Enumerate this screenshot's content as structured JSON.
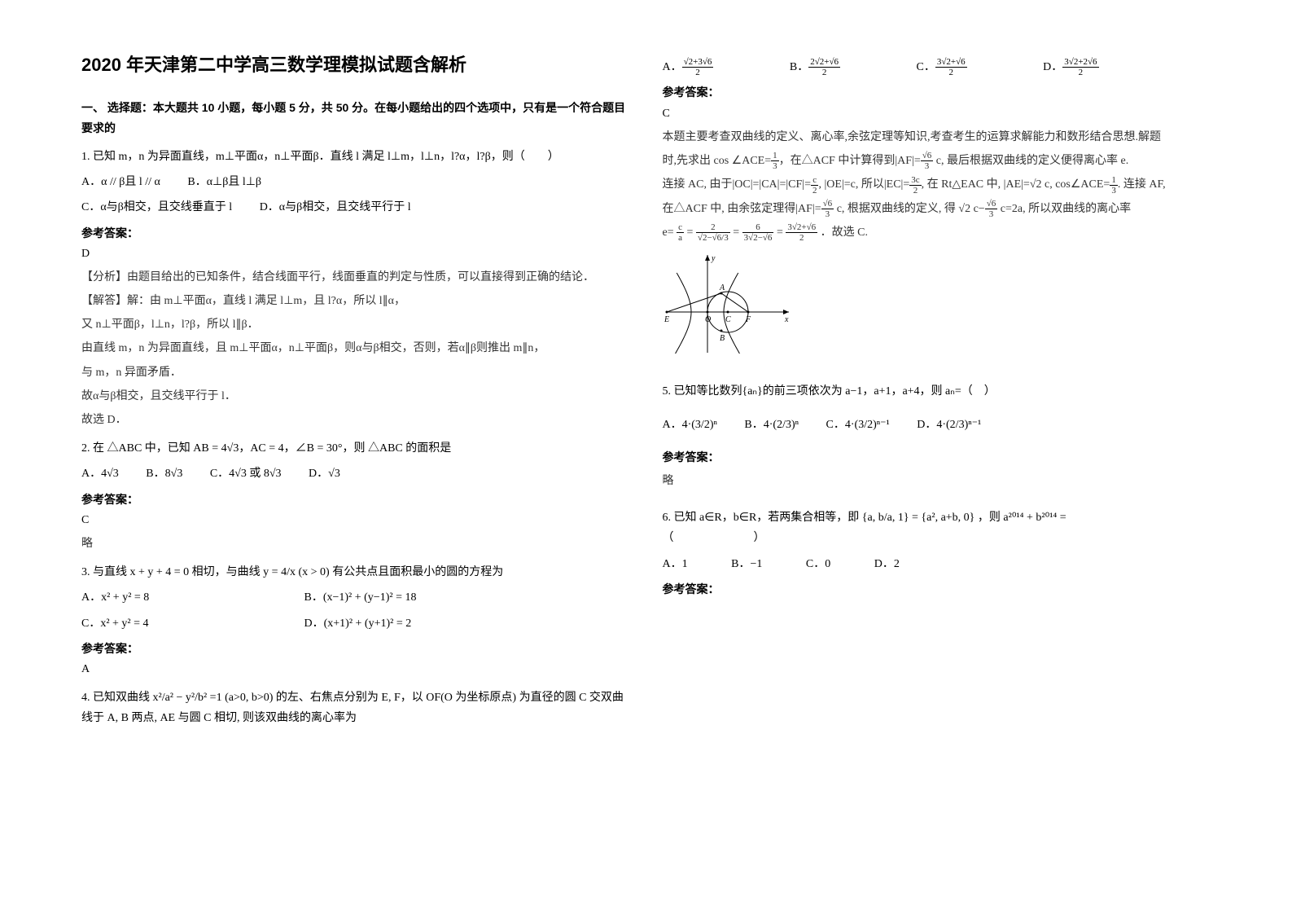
{
  "title": "2020 年天津第二中学高三数学理模拟试题含解析",
  "section1": "一、 选择题：本大题共 10 小题，每小题 5 分，共 50 分。在每小题给出的四个选项中，只有是一个符合题目要求的",
  "answer_label": "参考答案：",
  "q1": {
    "stem": "1. 已知 m，n 为异面直线，m⊥平面α，n⊥平面β．直线 l 满足 l⊥m，l⊥n，l?α，l?β，则（　　）",
    "optA": "A．α // β且 l // α",
    "optB": "B．α⊥β且 l⊥β",
    "optC": "C．α与β相交，且交线垂直于 l",
    "optD": "D．α与β相交，且交线平行于 l",
    "ans": "D",
    "sol1": "【分析】由题目给出的已知条件，结合线面平行，线面垂直的判定与性质，可以直接得到正确的结论．",
    "sol2": "【解答】解：由 m⊥平面α，直线 l 满足 l⊥m，且 l?α，所以 l∥α，",
    "sol3": "又 n⊥平面β，l⊥n，l?β，所以 l∥β．",
    "sol4": "由直线 m，n 为异面直线，且 m⊥平面α，n⊥平面β，则α与β相交，否则，若α∥β则推出 m∥n，",
    "sol5": "与 m，n 异面矛盾．",
    "sol6": "故α与β相交，且交线平行于 l．",
    "sol7": "故选 D．"
  },
  "q2": {
    "stem_pre": "2. 在 △ABC 中，已知 AB = 4√3，AC = 4，∠B = 30°，则 △ABC 的面积是",
    "optA": "A．4√3",
    "optB": "B．8√3",
    "optC": "C．4√3 或 8√3",
    "optD": "D．√3",
    "ans": "C",
    "sol": "略"
  },
  "q3": {
    "stem": "3. 与直线 x + y + 4 = 0 相切，与曲线 y = 4/x (x > 0) 有公共点且面积最小的圆的方程为",
    "optA": "A．x² + y² = 8",
    "optB": "B．(x−1)² + (y−1)² = 18",
    "optC": "C．x² + y² = 4",
    "optD": "D．(x+1)² + (y+1)² = 2",
    "ans": "A"
  },
  "q4": {
    "stem": "4. 已知双曲线 x²/a² − y²/b² =1 (a>0, b>0) 的左、右焦点分别为 E, F，以 OF(O 为坐标原点) 为直径的圆 C 交双曲线于 A, B 两点, AE 与圆 C 相切, 则该双曲线的离心率为",
    "optA_num": "√2+3√6",
    "optA_den": "2",
    "optB_num": "2√2+√6",
    "optB_den": "2",
    "optC_num": "3√2+√6",
    "optC_den": "2",
    "optD_num": "3√2+2√6",
    "optD_den": "2",
    "ans": "C",
    "sol1": "本题主要考查双曲线的定义、离心率,余弦定理等知识,考查考生的运算求解能力和数形结合思想.解题",
    "sol2": "时,先求出 cos ∠ACE=",
    "sol2b": "，在△ACF 中计算得到|AF|=",
    "sol2c": " c, 最后根据双曲线的定义便得离心率 e.",
    "sol3a": "连接 AC, 由于|OC|=|CA|=|CF|=",
    "sol3b": ", |OE|=c, 所以|EC|=",
    "sol3c": ", 在 Rt△EAC 中, |AE|=√2 c, cos∠ACE=",
    "sol3d": ". 连接 AF,",
    "sol4a": "在△ACF 中, 由余弦定理得|AF|=",
    "sol4b": " c, 根据双曲线的定义, 得 √2 c−",
    "sol4c": " c=2a, 所以双曲线的离心率",
    "sol5": "e=",
    "sol5b": "．故选 C.",
    "chart": {
      "width": 160,
      "height": 130,
      "bg": "#ffffff",
      "axis_color": "#000000",
      "curve_color": "#000000",
      "labels": {
        "E": "E",
        "O": "O",
        "C": "C",
        "F": "F",
        "A": "A",
        "B": "B",
        "x": "x",
        "y": "y"
      }
    }
  },
  "q5": {
    "stem": "5. 已知等比数列{aₙ}的前三项依次为 a−1，a+1，a+4，则 aₙ=（　）",
    "optA": "A．4·(3/2)ⁿ",
    "optB": "B．4·(2/3)ⁿ",
    "optC": "C．4·(3/2)ⁿ⁻¹",
    "optD": "D．4·(2/3)ⁿ⁻¹",
    "ans": "",
    "sol": "略"
  },
  "q6": {
    "stem_pre": "6. 已知 a∈R，b∈R，若两集合相等，即",
    "stem_set": "{a, b/a, 1} = {a², a+b, 0}",
    "stem_post": "，则 a²⁰¹⁴ + b²⁰¹⁴ =",
    "paren": "（　　　　　　　）",
    "optA": "A．1",
    "optB": "B．−1",
    "optC": "C．0",
    "optD": "D．2"
  }
}
